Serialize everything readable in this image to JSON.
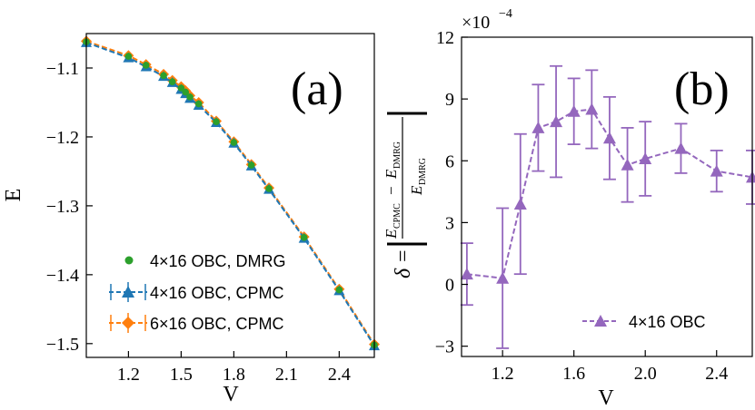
{
  "colors": {
    "dmrg": "#2ca02c",
    "cpmc4": "#1f77b4",
    "cpmc6": "#ff7f0e",
    "purple": "#9467bd"
  },
  "chart_data": [
    {
      "type": "line",
      "panel_label": "(a)",
      "xlabel": "V",
      "ylabel": "E",
      "xlim": [
        0.96,
        2.6
      ],
      "ylim": [
        -1.52,
        -1.05
      ],
      "xticks": [
        1.2,
        1.5,
        1.8,
        2.1,
        2.4
      ],
      "yticks": [
        -1.1,
        -1.2,
        -1.3,
        -1.4,
        -1.5
      ],
      "xtick_labels": [
        "1.2",
        "1.5",
        "1.8",
        "2.1",
        "2.4"
      ],
      "ytick_labels": [
        "−1.1",
        "−1.2",
        "−1.3",
        "−1.4",
        "−1.5"
      ],
      "legend_position": "lower-left",
      "series": [
        {
          "name": "4×16 OBC, DMRG",
          "style": "dots",
          "x": [
            0.96,
            1.2,
            1.3,
            1.4,
            1.45,
            1.5,
            1.525,
            1.55,
            1.6,
            1.7,
            1.8,
            1.9,
            2.0,
            2.2,
            2.4,
            2.6
          ],
          "y": [
            -1.062,
            -1.083,
            -1.096,
            -1.111,
            -1.12,
            -1.129,
            -1.135,
            -1.142,
            -1.152,
            -1.178,
            -1.208,
            -1.241,
            -1.275,
            -1.346,
            -1.422,
            -1.502
          ]
        },
        {
          "name": "4×16 OBC, CPMC",
          "style": "triangles-dashed",
          "x": [
            0.96,
            1.2,
            1.3,
            1.4,
            1.45,
            1.5,
            1.525,
            1.55,
            1.6,
            1.7,
            1.8,
            1.9,
            2.0,
            2.2,
            2.4,
            2.6
          ],
          "y": [
            -1.063,
            -1.085,
            -1.098,
            -1.112,
            -1.121,
            -1.131,
            -1.137,
            -1.144,
            -1.154,
            -1.179,
            -1.209,
            -1.242,
            -1.276,
            -1.347,
            -1.423,
            -1.503
          ]
        },
        {
          "name": "6×16 OBC, CPMC",
          "style": "diamonds-dashed",
          "x": [
            0.96,
            1.2,
            1.3,
            1.4,
            1.45,
            1.5,
            1.525,
            1.55,
            1.6,
            1.7,
            1.8,
            1.9,
            2.0,
            2.2,
            2.4,
            2.6
          ],
          "y": [
            -1.061,
            -1.082,
            -1.095,
            -1.109,
            -1.118,
            -1.127,
            -1.133,
            -1.14,
            -1.15,
            -1.177,
            -1.207,
            -1.24,
            -1.274,
            -1.345,
            -1.421,
            -1.501
          ]
        }
      ]
    },
    {
      "type": "line",
      "panel_label": "(b)",
      "xlabel": "V",
      "ylabel": "δ = |(E_CPMC − E_DMRG)/E_DMRG|",
      "ylabel_parts": {
        "delta": "δ",
        "equals": "=",
        "e": "E",
        "sub_cpmc": "CPMC",
        "sub_dmrg": "DMRG",
        "minus": "−"
      },
      "scale_label": {
        "base": "×10",
        "exponent": "−4"
      },
      "xlim": [
        0.97,
        2.6
      ],
      "ylim": [
        -3.5,
        12
      ],
      "xticks": [
        1.2,
        1.6,
        2.0,
        2.4
      ],
      "yticks": [
        -3,
        0,
        3,
        6,
        9,
        12
      ],
      "xtick_labels": [
        "1.2",
        "1.6",
        "2.0",
        "2.4"
      ],
      "ytick_labels": [
        "−3",
        "0",
        "3",
        "6",
        "9",
        "12"
      ],
      "legend_position": "lower-right",
      "series": [
        {
          "name": "4×16 OBC",
          "style": "triangles-dashed-errorbars",
          "x": [
            1.0,
            1.2,
            1.3,
            1.4,
            1.5,
            1.6,
            1.7,
            1.8,
            1.9,
            2.0,
            2.2,
            2.4,
            2.6
          ],
          "y": [
            0.5,
            0.3,
            3.9,
            7.6,
            7.9,
            8.4,
            8.5,
            7.1,
            5.8,
            6.1,
            6.6,
            5.5,
            5.2
          ],
          "err": [
            1.5,
            3.4,
            3.4,
            2.1,
            2.7,
            1.6,
            1.9,
            2.0,
            1.8,
            1.8,
            1.2,
            1.0,
            1.3
          ]
        }
      ]
    }
  ]
}
